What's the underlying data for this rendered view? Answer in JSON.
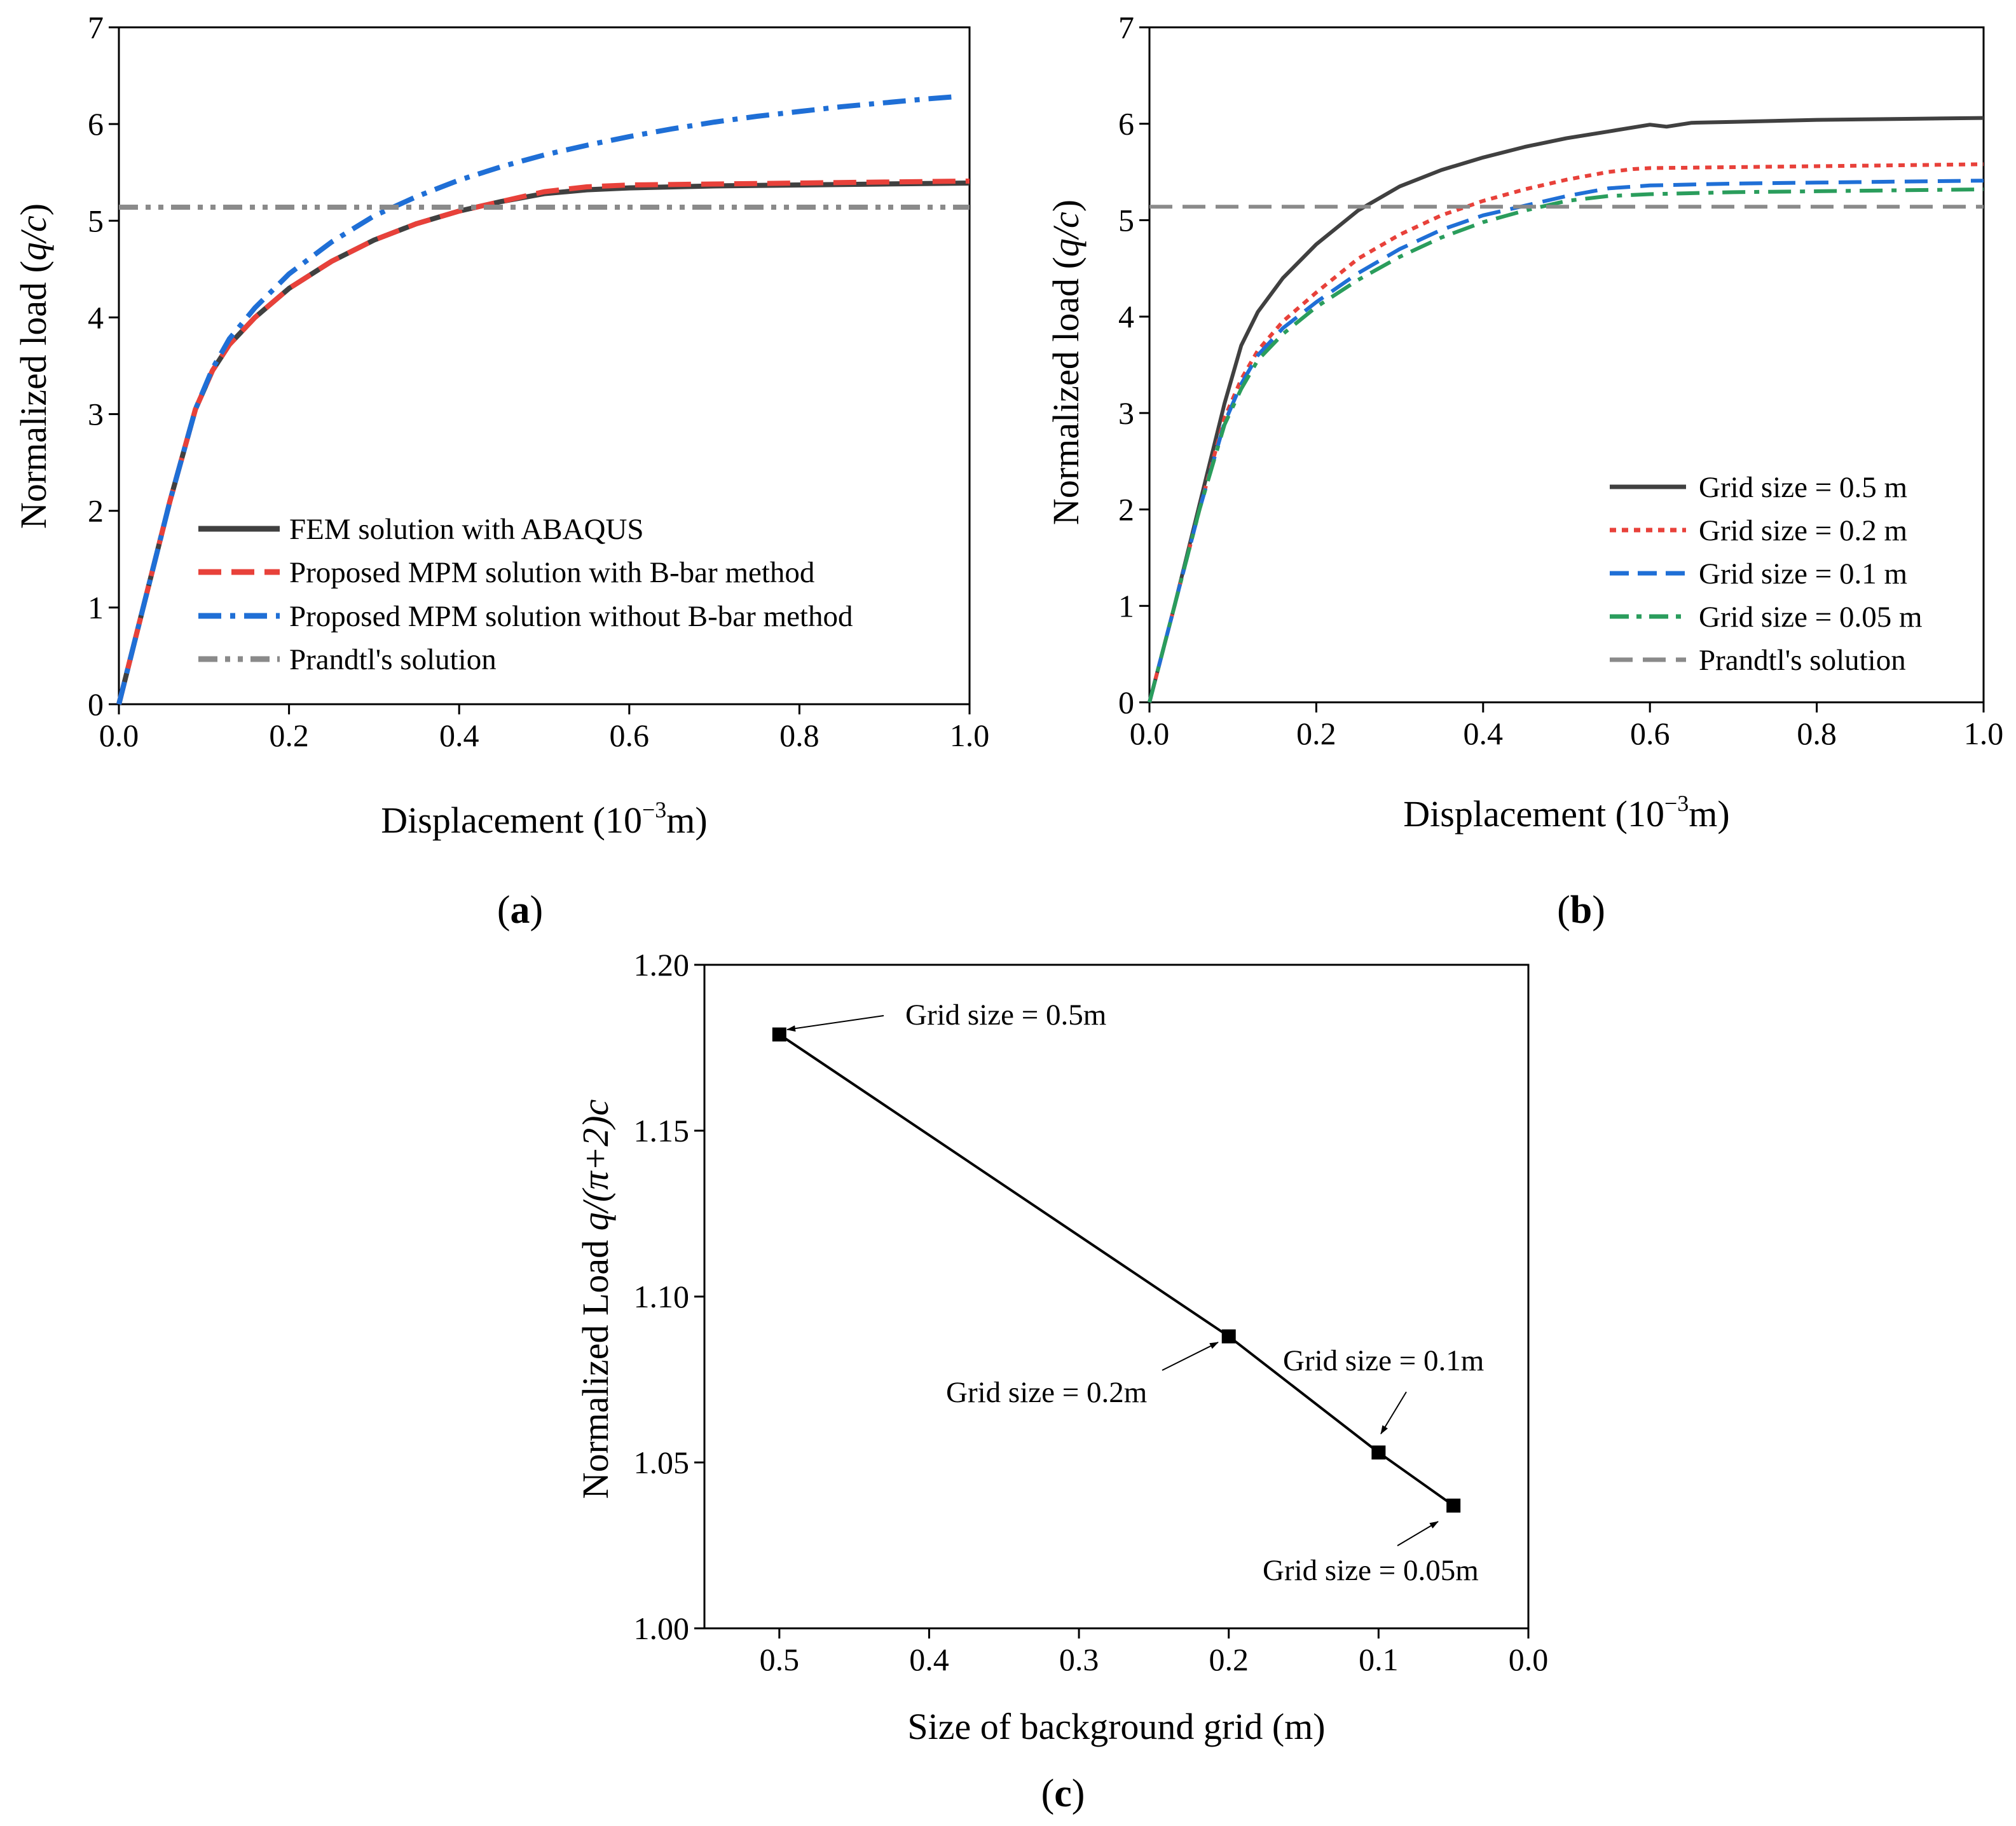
{
  "chart_data": [
    {
      "id": "a",
      "type": "line",
      "panel_label": "a",
      "xlabel": "Displacement (10",
      "xlabel_sup": "−3",
      "xlabel_tail": "m)",
      "ylabel": "Normalized load (",
      "ylabel_var": "q/c",
      "ylabel_tail": ")",
      "xlim": [
        0.0,
        1.0
      ],
      "ylim": [
        0,
        7
      ],
      "xticks": [
        "0.0",
        "0.2",
        "0.4",
        "0.6",
        "0.8",
        "1.0"
      ],
      "yticks": [
        "0",
        "1",
        "2",
        "3",
        "4",
        "5",
        "6",
        "7"
      ],
      "legend_position": "bottom-left",
      "series": [
        {
          "name": "FEM solution with ABAQUS",
          "color": "#404040",
          "style": "solid-marker",
          "x": [
            0,
            0.03,
            0.06,
            0.09,
            0.11,
            0.13,
            0.16,
            0.2,
            0.25,
            0.3,
            0.35,
            0.4,
            0.45,
            0.5,
            0.55,
            0.6,
            0.7,
            0.8,
            0.9,
            1.0
          ],
          "y": [
            0,
            1.05,
            2.1,
            3.05,
            3.45,
            3.72,
            4.0,
            4.3,
            4.58,
            4.8,
            4.97,
            5.1,
            5.2,
            5.28,
            5.32,
            5.34,
            5.36,
            5.37,
            5.38,
            5.39
          ]
        },
        {
          "name": "Proposed MPM solution with B-bar method",
          "color": "#e8413a",
          "style": "dash",
          "x": [
            0,
            0.03,
            0.06,
            0.09,
            0.11,
            0.13,
            0.16,
            0.2,
            0.25,
            0.3,
            0.35,
            0.4,
            0.45,
            0.5,
            0.55,
            0.6,
            0.7,
            0.8,
            0.9,
            1.0
          ],
          "y": [
            0,
            1.05,
            2.1,
            3.05,
            3.45,
            3.72,
            4.0,
            4.3,
            4.58,
            4.8,
            4.97,
            5.1,
            5.2,
            5.3,
            5.35,
            5.37,
            5.38,
            5.39,
            5.4,
            5.41
          ]
        },
        {
          "name": "Proposed MPM solution without B-bar method",
          "color": "#1f6fd6",
          "style": "dashdot",
          "x": [
            0,
            0.03,
            0.06,
            0.09,
            0.11,
            0.13,
            0.16,
            0.2,
            0.25,
            0.3,
            0.35,
            0.4,
            0.45,
            0.5,
            0.55,
            0.6,
            0.65,
            0.7,
            0.75,
            0.8,
            0.85,
            0.9,
            0.95,
            0.98
          ],
          "y": [
            0,
            1.05,
            2.1,
            3.05,
            3.47,
            3.78,
            4.1,
            4.45,
            4.78,
            5.05,
            5.25,
            5.42,
            5.56,
            5.68,
            5.78,
            5.87,
            5.95,
            6.02,
            6.08,
            6.13,
            6.18,
            6.22,
            6.26,
            6.28
          ]
        },
        {
          "name": "Prandtl's solution",
          "color": "#8a8a8a",
          "style": "dashdotdot",
          "x": [
            0,
            1.0
          ],
          "y": [
            5.14,
            5.14
          ]
        }
      ]
    },
    {
      "id": "b",
      "type": "line",
      "panel_label": "b",
      "xlabel": "Displacement (10",
      "xlabel_sup": "−3",
      "xlabel_tail": "m)",
      "ylabel": "Normalized load (",
      "ylabel_var": "q/c",
      "ylabel_tail": ")",
      "xlim": [
        0.0,
        1.0
      ],
      "ylim": [
        0,
        7
      ],
      "xticks": [
        "0.0",
        "0.2",
        "0.4",
        "0.6",
        "0.8",
        "1.0"
      ],
      "yticks": [
        "0",
        "1",
        "2",
        "3",
        "4",
        "5",
        "6",
        "7"
      ],
      "legend_position": "bottom-right",
      "series": [
        {
          "name": "Grid size = 0.5 m",
          "color": "#404040",
          "style": "solid",
          "x": [
            0,
            0.03,
            0.06,
            0.09,
            0.11,
            0.13,
            0.16,
            0.2,
            0.25,
            0.3,
            0.35,
            0.4,
            0.45,
            0.5,
            0.55,
            0.6,
            0.62,
            0.65,
            0.7,
            0.8,
            0.9,
            1.0
          ],
          "y": [
            0,
            1.0,
            2.05,
            3.1,
            3.7,
            4.05,
            4.4,
            4.75,
            5.1,
            5.35,
            5.52,
            5.65,
            5.76,
            5.85,
            5.92,
            5.99,
            5.97,
            6.01,
            6.02,
            6.04,
            6.05,
            6.06
          ]
        },
        {
          "name": "Grid size = 0.2 m",
          "color": "#e8413a",
          "style": "dot",
          "x": [
            0,
            0.03,
            0.06,
            0.09,
            0.11,
            0.13,
            0.16,
            0.2,
            0.25,
            0.3,
            0.35,
            0.4,
            0.45,
            0.5,
            0.55,
            0.58,
            0.6,
            0.7,
            0.8,
            0.9,
            1.0
          ],
          "y": [
            0,
            1.0,
            2.0,
            2.95,
            3.35,
            3.65,
            3.95,
            4.25,
            4.6,
            4.85,
            5.05,
            5.2,
            5.32,
            5.42,
            5.5,
            5.53,
            5.54,
            5.55,
            5.56,
            5.57,
            5.58
          ]
        },
        {
          "name": "Grid size = 0.1 m",
          "color": "#1f6fd6",
          "style": "dash",
          "x": [
            0,
            0.03,
            0.06,
            0.09,
            0.11,
            0.13,
            0.16,
            0.2,
            0.25,
            0.3,
            0.35,
            0.4,
            0.45,
            0.5,
            0.55,
            0.6,
            0.7,
            0.8,
            0.9,
            1.0
          ],
          "y": [
            0,
            1.0,
            2.0,
            2.9,
            3.3,
            3.6,
            3.88,
            4.15,
            4.45,
            4.7,
            4.9,
            5.05,
            5.15,
            5.25,
            5.33,
            5.36,
            5.38,
            5.39,
            5.4,
            5.41
          ]
        },
        {
          "name": "Grid size = 0.05 m",
          "color": "#2a9d5c",
          "style": "dashdot",
          "x": [
            0,
            0.03,
            0.06,
            0.09,
            0.11,
            0.13,
            0.16,
            0.2,
            0.25,
            0.3,
            0.35,
            0.4,
            0.45,
            0.5,
            0.55,
            0.6,
            0.7,
            0.8,
            0.9,
            1.0
          ],
          "y": [
            0,
            1.0,
            2.0,
            2.88,
            3.25,
            3.55,
            3.82,
            4.1,
            4.38,
            4.62,
            4.82,
            4.98,
            5.1,
            5.2,
            5.25,
            5.27,
            5.29,
            5.3,
            5.31,
            5.32
          ]
        },
        {
          "name": "Prandtl's solution",
          "color": "#8a8a8a",
          "style": "dash-long",
          "x": [
            0,
            1.0
          ],
          "y": [
            5.14,
            5.14
          ]
        }
      ]
    },
    {
      "id": "c",
      "type": "line",
      "panel_label": "c",
      "xlabel": "Size of background grid (m)",
      "ylabel": "Normalized Load  ",
      "ylabel_var": "q/(π+2)c",
      "xlim": [
        0.55,
        0.0
      ],
      "ylim": [
        1.0,
        1.2
      ],
      "xticks": [
        "0.5",
        "0.4",
        "0.3",
        "0.2",
        "0.1",
        "0.0"
      ],
      "yticks": [
        "1.00",
        "1.05",
        "1.10",
        "1.15",
        "1.20"
      ],
      "series": [
        {
          "name": "Normalized load",
          "color": "#000000",
          "style": "solid-square",
          "x": [
            0.5,
            0.2,
            0.1,
            0.05
          ],
          "y": [
            1.179,
            1.088,
            1.053,
            1.037
          ]
        }
      ],
      "annotations": [
        {
          "text": "Grid size = 0.5m"
        },
        {
          "text": "Grid size = 0.2m"
        },
        {
          "text": "Grid size = 0.1m"
        },
        {
          "text": "Grid size = 0.05m"
        }
      ]
    }
  ]
}
